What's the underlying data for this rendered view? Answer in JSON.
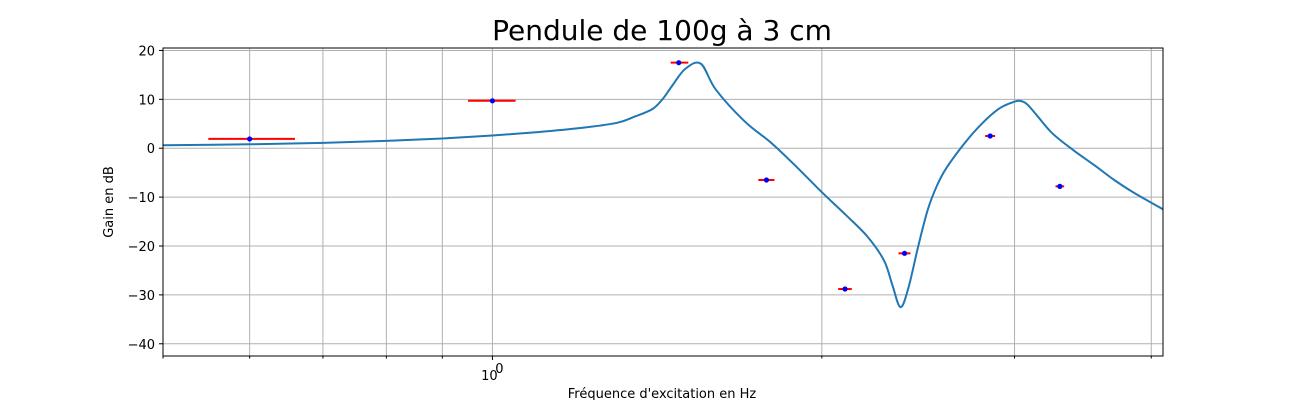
{
  "chart_data": {
    "type": "line",
    "title": "Pendule de 100g à 3 cm",
    "xlabel": "Fréquence d'excitation en Hz",
    "ylabel": "Gain en dB",
    "xscale": "log",
    "xlim": [
      0.5,
      4.1
    ],
    "ylim": [
      -42.5,
      20.5
    ],
    "grid": true,
    "y_ticks": [
      20,
      10,
      0,
      -10,
      -20,
      -30,
      -40
    ],
    "y_tick_labels": [
      "20",
      "10",
      "0",
      "−10",
      "−20",
      "−30",
      "−40"
    ],
    "x_major_ticks": [
      1
    ],
    "x_major_tick_labels": [
      {
        "base": "10",
        "exp": "0"
      }
    ],
    "x_minor_ticks": [
      0.5,
      0.6,
      0.7,
      0.8,
      0.9,
      2,
      3,
      4
    ],
    "series": [
      {
        "kind": "line",
        "color": "#1f77b4",
        "x": [
          0.5,
          0.6,
          0.7,
          0.8,
          0.9,
          1.0,
          1.1,
          1.2,
          1.3,
          1.35,
          1.4,
          1.43,
          1.46,
          1.5,
          1.55,
          1.6,
          1.7,
          1.8,
          1.9,
          2.0,
          2.1,
          2.2,
          2.28,
          2.32,
          2.36,
          2.4,
          2.45,
          2.5,
          2.55,
          2.6,
          2.7,
          2.8,
          2.9,
          2.98,
          3.03,
          3.08,
          3.15,
          3.25,
          3.4,
          3.55,
          3.7,
          3.85,
          4.1
        ],
        "y": [
          0.6,
          0.8,
          1.1,
          1.5,
          2.0,
          2.6,
          3.3,
          4.1,
          5.2,
          6.5,
          8.0,
          10.0,
          12.8,
          16.2,
          17.3,
          12.0,
          5.5,
          1.0,
          -4.0,
          -9.0,
          -13.5,
          -18.0,
          -23.0,
          -28.0,
          -32.5,
          -28.5,
          -20.0,
          -12.5,
          -7.5,
          -4.0,
          1.0,
          5.0,
          8.0,
          9.3,
          9.7,
          9.0,
          6.5,
          3.0,
          -0.5,
          -3.5,
          -6.5,
          -9.0,
          -12.5
        ]
      },
      {
        "kind": "points",
        "point_color": "#0000ff",
        "errorbar_color": "#ff0000",
        "points": [
          {
            "x": 0.6,
            "y": 1.9,
            "xerr": [
              0.55,
              0.66
            ]
          },
          {
            "x": 1.0,
            "y": 9.7,
            "xerr": [
              0.95,
              1.05
            ]
          },
          {
            "x": 1.48,
            "y": 17.5,
            "xerr": [
              1.455,
              1.51
            ]
          },
          {
            "x": 1.78,
            "y": -6.5,
            "xerr": [
              1.75,
              1.81
            ]
          },
          {
            "x": 2.1,
            "y": -28.8,
            "xerr": [
              2.07,
              2.13
            ]
          },
          {
            "x": 2.38,
            "y": -21.5,
            "xerr": [
              2.35,
              2.41
            ]
          },
          {
            "x": 2.85,
            "y": 2.5,
            "xerr": [
              2.82,
              2.88
            ]
          },
          {
            "x": 3.3,
            "y": -7.8,
            "xerr": [
              3.27,
              3.33
            ]
          }
        ]
      }
    ]
  }
}
